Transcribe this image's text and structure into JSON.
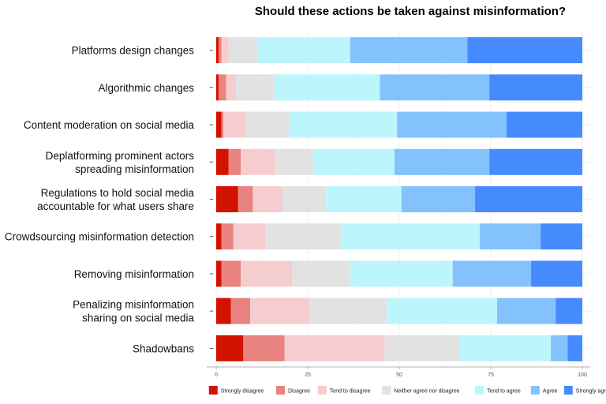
{
  "chart_data": {
    "type": "bar",
    "orientation": "horizontal",
    "stacked": true,
    "title": "Should these actions be taken against misinformation?",
    "xlabel": "",
    "ylabel": "",
    "xlim": [
      0,
      100
    ],
    "xticks": [
      0,
      25,
      50,
      75,
      100
    ],
    "grid": true,
    "legend_position": "bottom",
    "categories": [
      [
        "Platforms design changes"
      ],
      [
        "Algorithmic changes"
      ],
      [
        "Content moderation on social media"
      ],
      [
        "Deplatforming prominent actors",
        "spreading misinformation"
      ],
      [
        "Regulations to hold social media",
        "accountable for what users share"
      ],
      [
        "Crowdsourcing misinformation detection"
      ],
      [
        "Removing misinformation"
      ],
      [
        "Penalizing misinformation",
        "sharing on social media"
      ],
      [
        "Shadowbans"
      ]
    ],
    "series": [
      {
        "name": "Strongly disagree",
        "color": "#d41200",
        "values": [
          0.7,
          0.7,
          1.4,
          3.4,
          6.0,
          1.4,
          1.4,
          4.0,
          7.4
        ]
      },
      {
        "name": "Disagree",
        "color": "#e88380",
        "values": [
          0.7,
          2.0,
          0.6,
          3.3,
          4.0,
          3.3,
          5.3,
          5.3,
          11.3
        ]
      },
      {
        "name": "Tend to disagree",
        "color": "#f6cdce",
        "values": [
          2.0,
          2.7,
          6.0,
          9.3,
          8.0,
          8.7,
          14.0,
          16.1,
          27.3
        ]
      },
      {
        "name": "Neither agree nor disagree",
        "color": "#e2e2e2",
        "values": [
          8.0,
          10.5,
          12.0,
          10.7,
          12.0,
          20.6,
          15.9,
          21.2,
          20.6
        ]
      },
      {
        "name": "Tend to agree",
        "color": "#bdf5fd",
        "values": [
          25.2,
          28.8,
          29.4,
          22.0,
          20.6,
          38.0,
          28.0,
          30.1,
          24.8
        ]
      },
      {
        "name": "Agree",
        "color": "#84c2fe",
        "values": [
          32.0,
          29.9,
          29.9,
          25.9,
          20.1,
          16.6,
          21.4,
          16.0,
          4.6
        ]
      },
      {
        "name": "Strongly agree",
        "color": "#468bfe",
        "values": [
          31.4,
          25.4,
          20.7,
          25.4,
          29.3,
          11.4,
          14.0,
          7.3,
          4.0
        ]
      }
    ]
  }
}
